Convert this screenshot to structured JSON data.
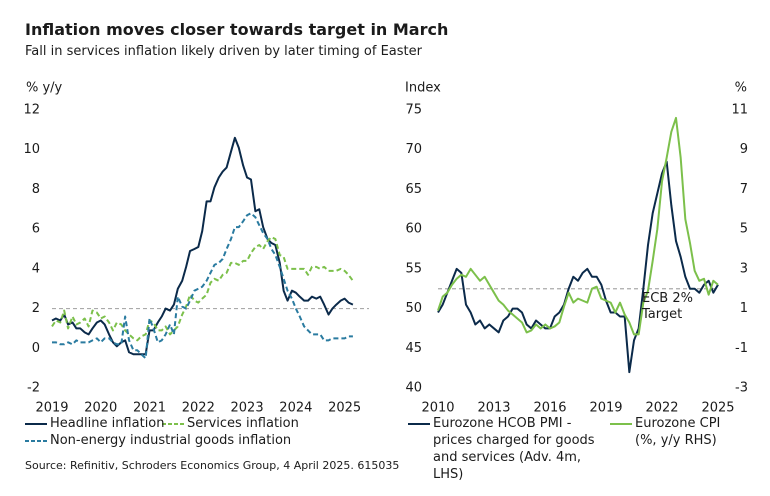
{
  "title": "Inflation moves closer towards target in March",
  "subtitle": "Fall in services inflation likely driven by later timing of Easter",
  "source": "Source: Refinitiv, Schroders Economics Group, 4 April 2025. 615035",
  "chart_data": [
    {
      "type": "line",
      "ylabel": "% y/y",
      "xlim": [
        2019,
        2025.5
      ],
      "xticks": [
        2019,
        2020,
        2021,
        2022,
        2023,
        2024,
        2025
      ],
      "ylim": [
        -2,
        12
      ],
      "yticks": [
        -2,
        0,
        2,
        4,
        6,
        8,
        10,
        12
      ],
      "hline": 2,
      "x": [
        2019,
        2019.08,
        2019.17,
        2019.25,
        2019.33,
        2019.42,
        2019.5,
        2019.58,
        2019.67,
        2019.75,
        2019.83,
        2019.92,
        2020,
        2020.08,
        2020.17,
        2020.25,
        2020.33,
        2020.42,
        2020.5,
        2020.58,
        2020.67,
        2020.75,
        2020.83,
        2020.92,
        2021,
        2021.08,
        2021.17,
        2021.25,
        2021.33,
        2021.42,
        2021.5,
        2021.58,
        2021.67,
        2021.75,
        2021.83,
        2021.92,
        2022,
        2022.08,
        2022.17,
        2022.25,
        2022.33,
        2022.42,
        2022.5,
        2022.58,
        2022.67,
        2022.75,
        2022.83,
        2022.92,
        2023,
        2023.08,
        2023.17,
        2023.25,
        2023.33,
        2023.42,
        2023.5,
        2023.58,
        2023.67,
        2023.75,
        2023.83,
        2023.92,
        2024,
        2024.08,
        2024.17,
        2024.25,
        2024.33,
        2024.42,
        2024.5,
        2024.58,
        2024.67,
        2024.75,
        2024.83,
        2024.92,
        2025,
        2025.08,
        2025.17
      ],
      "series": [
        {
          "name": "Headline inflation",
          "color": "#0b2a4a",
          "dashed": false,
          "values": [
            1.4,
            1.5,
            1.4,
            1.7,
            1.2,
            1.3,
            1.0,
            1.0,
            0.8,
            0.7,
            1.0,
            1.3,
            1.4,
            1.2,
            0.7,
            0.3,
            0.1,
            0.3,
            0.4,
            -0.2,
            -0.3,
            -0.3,
            -0.3,
            -0.3,
            0.9,
            0.9,
            1.3,
            1.6,
            2.0,
            1.9,
            2.2,
            3.0,
            3.4,
            4.1,
            4.9,
            5.0,
            5.1,
            5.9,
            7.4,
            7.4,
            8.1,
            8.6,
            8.9,
            9.1,
            9.9,
            10.6,
            10.1,
            9.2,
            8.6,
            8.5,
            6.9,
            7.0,
            6.1,
            5.5,
            5.3,
            5.2,
            4.3,
            2.9,
            2.4,
            2.9,
            2.8,
            2.6,
            2.4,
            2.4,
            2.6,
            2.5,
            2.6,
            2.2,
            1.7,
            2.0,
            2.2,
            2.4,
            2.5,
            2.3,
            2.2
          ]
        },
        {
          "name": "Services inflation",
          "color": "#7cc04b",
          "dashed": true,
          "values": [
            1.1,
            1.4,
            1.3,
            1.9,
            1.0,
            1.6,
            1.2,
            1.3,
            1.5,
            1.1,
            1.9,
            1.8,
            1.5,
            1.6,
            1.3,
            0.9,
            1.3,
            1.2,
            0.9,
            0.7,
            0.5,
            0.4,
            0.6,
            0.7,
            1.4,
            1.3,
            0.9,
            0.9,
            1.1,
            0.7,
            0.9,
            1.1,
            1.7,
            2.1,
            2.7,
            2.4,
            2.3,
            2.5,
            2.7,
            3.3,
            3.5,
            3.4,
            3.7,
            3.8,
            4.3,
            4.3,
            4.2,
            4.4,
            4.4,
            4.8,
            5.1,
            5.2,
            5.0,
            5.4,
            5.6,
            5.5,
            4.7,
            4.6,
            4.0,
            4.0,
            4.0,
            4.0,
            4.0,
            3.7,
            4.1,
            4.1,
            4.0,
            4.1,
            3.9,
            3.9,
            3.9,
            4.0,
            3.9,
            3.7,
            3.4
          ]
        },
        {
          "name": "Non-energy industrial goods inflation",
          "color": "#2a7ba0",
          "dashed": true,
          "values": [
            0.3,
            0.3,
            0.2,
            0.2,
            0.3,
            0.2,
            0.4,
            0.3,
            0.3,
            0.3,
            0.4,
            0.5,
            0.3,
            0.5,
            0.5,
            0.3,
            0.2,
            0.2,
            1.6,
            0.4,
            -0.1,
            -0.1,
            -0.3,
            -0.5,
            1.5,
            1.0,
            0.3,
            0.4,
            0.7,
            1.2,
            0.7,
            2.6,
            2.1,
            2.0,
            2.4,
            2.9,
            3.0,
            3.1,
            3.4,
            3.8,
            4.2,
            4.3,
            4.5,
            5.0,
            5.5,
            6.1,
            6.1,
            6.4,
            6.7,
            6.8,
            6.6,
            6.2,
            5.8,
            5.5,
            5.0,
            4.7,
            4.1,
            3.5,
            2.9,
            2.5,
            2.0,
            1.6,
            1.1,
            0.9,
            0.7,
            0.7,
            0.7,
            0.4,
            0.4,
            0.5,
            0.5,
            0.5,
            0.5,
            0.6,
            0.6
          ]
        }
      ]
    },
    {
      "type": "line",
      "ylabel": "Index",
      "y2label": "%",
      "xlim": [
        2010,
        2025
      ],
      "xticks": [
        2010,
        2013,
        2016,
        2019,
        2022,
        2025
      ],
      "ylim": [
        40,
        75
      ],
      "yticks": [
        40,
        45,
        50,
        55,
        60,
        65,
        70,
        75
      ],
      "y2lim": [
        -3,
        11
      ],
      "y2ticks": [
        -3,
        -1,
        1,
        3,
        5,
        7,
        9,
        11
      ],
      "hline": 2,
      "hline_axis": "y2",
      "annotation": [
        "ECB 2%",
        "Target"
      ],
      "x": [
        2010,
        2010.25,
        2010.5,
        2010.75,
        2011,
        2011.25,
        2011.5,
        2011.75,
        2012,
        2012.25,
        2012.5,
        2012.75,
        2013,
        2013.25,
        2013.5,
        2013.75,
        2014,
        2014.25,
        2014.5,
        2014.75,
        2015,
        2015.25,
        2015.5,
        2015.75,
        2016,
        2016.25,
        2016.5,
        2016.75,
        2017,
        2017.25,
        2017.5,
        2017.75,
        2018,
        2018.25,
        2018.5,
        2018.75,
        2019,
        2019.25,
        2019.5,
        2019.75,
        2020,
        2020.25,
        2020.5,
        2020.75,
        2021,
        2021.25,
        2021.5,
        2021.75,
        2022,
        2022.25,
        2022.5,
        2022.75,
        2023,
        2023.25,
        2023.5,
        2023.75,
        2024,
        2024.25,
        2024.5,
        2024.75,
        2025
      ],
      "series": [
        {
          "name": "Eurozone HCOB PMI - prices charged for goods and services (Adv. 4m, LHS)",
          "color": "#0b2a4a",
          "axis": "y",
          "values": [
            49.5,
            50.5,
            52.0,
            53.5,
            55.0,
            54.5,
            50.5,
            49.5,
            48.0,
            48.5,
            47.5,
            48.0,
            47.5,
            47.0,
            48.5,
            49.0,
            50.0,
            50.0,
            49.5,
            48.0,
            47.5,
            48.5,
            48.0,
            47.5,
            47.5,
            49.0,
            49.5,
            50.5,
            52.5,
            54.0,
            53.5,
            54.5,
            55.0,
            54.0,
            54.0,
            53.0,
            51.0,
            49.5,
            49.5,
            49.0,
            49.0,
            42.0,
            46.0,
            47.5,
            52.5,
            58.0,
            62.0,
            64.5,
            67.0,
            68.5,
            63.0,
            58.5,
            56.5,
            54.0,
            52.5,
            52.5,
            52.0,
            53.0,
            53.5,
            52.0,
            53.0
          ]
        },
        {
          "name": "Eurozone CPI (%, y/y RHS)",
          "color": "#7cc04b",
          "axis": "y2",
          "values": [
            0.9,
            1.6,
            1.8,
            2.2,
            2.5,
            2.7,
            2.6,
            3.0,
            2.7,
            2.4,
            2.6,
            2.2,
            1.8,
            1.4,
            1.2,
            0.9,
            0.7,
            0.5,
            0.3,
            -0.2,
            -0.1,
            0.2,
            0.0,
            0.2,
            0.0,
            0.1,
            0.3,
            1.1,
            1.8,
            1.3,
            1.5,
            1.4,
            1.3,
            2.0,
            2.1,
            1.5,
            1.4,
            1.3,
            0.8,
            1.3,
            0.7,
            0.3,
            -0.3,
            -0.3,
            1.3,
            1.9,
            3.4,
            5.0,
            7.4,
            8.6,
            9.9,
            10.6,
            8.6,
            5.5,
            4.3,
            2.9,
            2.4,
            2.5,
            1.7,
            2.4,
            2.2
          ]
        }
      ]
    }
  ]
}
